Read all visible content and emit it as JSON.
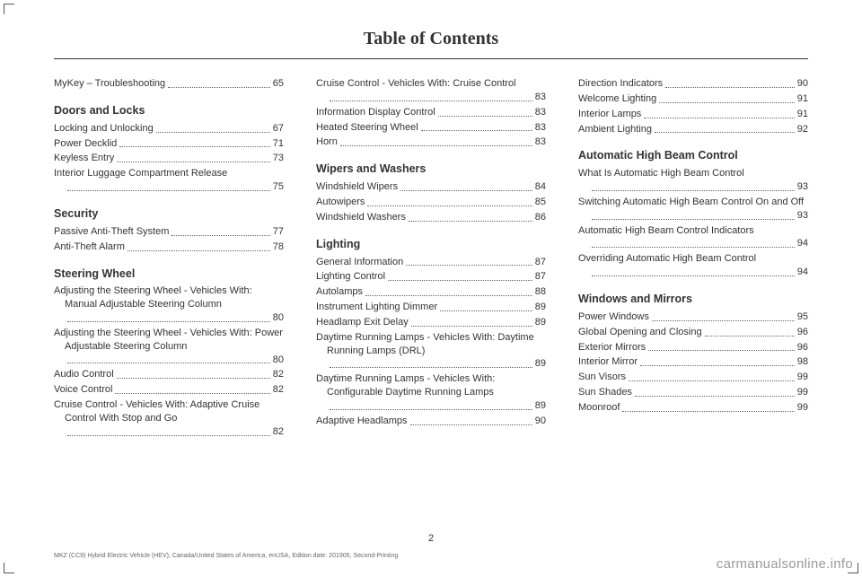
{
  "title": "Table of Contents",
  "page_number": "2",
  "footer": "MKZ (CC9) Hybrid Electric Vehicle (HEV), Canada/United States of America, enUSA, Edition date: 201905, Second-Printing",
  "watermark": "carmanualsonline.info",
  "sections": [
    {
      "type": "entry",
      "text": "MyKey – Troubleshooting",
      "page": "65"
    },
    {
      "type": "heading",
      "text": "Doors and Locks"
    },
    {
      "type": "entry",
      "text": "Locking and Unlocking",
      "page": "67"
    },
    {
      "type": "entry",
      "text": "Power Decklid",
      "page": "71"
    },
    {
      "type": "entry",
      "text": "Keyless Entry",
      "page": "73"
    },
    {
      "type": "entry",
      "text": "Interior Luggage Compartment Release",
      "page": "75",
      "wrap": true
    },
    {
      "type": "heading",
      "text": "Security"
    },
    {
      "type": "entry",
      "text": "Passive Anti-Theft System",
      "page": "77"
    },
    {
      "type": "entry",
      "text": "Anti-Theft Alarm",
      "page": "78"
    },
    {
      "type": "heading",
      "text": "Steering Wheel"
    },
    {
      "type": "entry",
      "text": "Adjusting the Steering Wheel - Vehicles With: Manual Adjustable Steering Column",
      "page": "80",
      "wrap": true
    },
    {
      "type": "entry",
      "text": "Adjusting the Steering Wheel - Vehicles With: Power Adjustable Steering Column",
      "page": "80",
      "wrap": true
    },
    {
      "type": "entry",
      "text": "Audio Control",
      "page": "82"
    },
    {
      "type": "entry",
      "text": "Voice Control",
      "page": "82"
    },
    {
      "type": "entry",
      "text": "Cruise Control - Vehicles With: Adaptive Cruise Control With Stop and Go",
      "page": "82",
      "wrap": true
    },
    {
      "type": "entry",
      "text": "Cruise Control - Vehicles With: Cruise Control",
      "page": "83",
      "wrap": true
    },
    {
      "type": "entry",
      "text": "Information Display Control",
      "page": "83"
    },
    {
      "type": "entry",
      "text": "Heated Steering Wheel",
      "page": "83"
    },
    {
      "type": "entry",
      "text": "Horn",
      "page": "83"
    },
    {
      "type": "heading",
      "text": "Wipers and Washers"
    },
    {
      "type": "entry",
      "text": "Windshield Wipers",
      "page": "84"
    },
    {
      "type": "entry",
      "text": "Autowipers",
      "page": "85"
    },
    {
      "type": "entry",
      "text": "Windshield Washers",
      "page": "86"
    },
    {
      "type": "heading",
      "text": "Lighting"
    },
    {
      "type": "entry",
      "text": "General Information",
      "page": "87"
    },
    {
      "type": "entry",
      "text": "Lighting Control",
      "page": "87"
    },
    {
      "type": "entry",
      "text": "Autolamps",
      "page": "88"
    },
    {
      "type": "entry",
      "text": "Instrument Lighting Dimmer",
      "page": "89"
    },
    {
      "type": "entry",
      "text": "Headlamp Exit Delay",
      "page": "89"
    },
    {
      "type": "entry",
      "text": "Daytime Running Lamps - Vehicles With: Daytime Running Lamps (DRL)",
      "page": "89",
      "wrap": true
    },
    {
      "type": "entry",
      "text": "Daytime Running Lamps - Vehicles With: Configurable Daytime Running Lamps",
      "page": "89",
      "wrap": true
    },
    {
      "type": "entry",
      "text": "Adaptive Headlamps",
      "page": "90"
    },
    {
      "type": "entry",
      "text": "Direction Indicators",
      "page": "90"
    },
    {
      "type": "entry",
      "text": "Welcome Lighting",
      "page": "91"
    },
    {
      "type": "entry",
      "text": "Interior Lamps",
      "page": "91"
    },
    {
      "type": "entry",
      "text": "Ambient Lighting",
      "page": "92"
    },
    {
      "type": "heading",
      "text": "Automatic High Beam Control"
    },
    {
      "type": "entry",
      "text": "What Is Automatic High Beam Control",
      "page": "93",
      "wrap": true
    },
    {
      "type": "entry",
      "text": "Switching Automatic High Beam Control On and Off",
      "page": "93",
      "wrap": true
    },
    {
      "type": "entry",
      "text": "Automatic High Beam Control Indicators",
      "page": "94",
      "wrap": true
    },
    {
      "type": "entry",
      "text": "Overriding Automatic High Beam Control",
      "page": "94",
      "wrap": true
    },
    {
      "type": "heading",
      "text": "Windows and Mirrors"
    },
    {
      "type": "entry",
      "text": "Power Windows",
      "page": "95"
    },
    {
      "type": "entry",
      "text": "Global Opening and Closing",
      "page": "96"
    },
    {
      "type": "entry",
      "text": "Exterior Mirrors",
      "page": "96"
    },
    {
      "type": "entry",
      "text": "Interior Mirror",
      "page": "98"
    },
    {
      "type": "entry",
      "text": "Sun Visors",
      "page": "99"
    },
    {
      "type": "entry",
      "text": "Sun Shades",
      "page": "99"
    },
    {
      "type": "entry",
      "text": "Moonroof",
      "page": "99"
    }
  ]
}
